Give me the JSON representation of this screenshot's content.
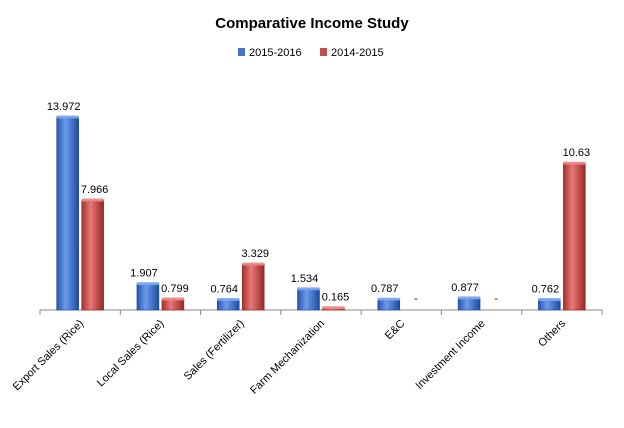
{
  "chart_data": {
    "type": "bar",
    "title": "Comparative Income Study",
    "xlabel": "",
    "ylabel": "",
    "ylim": [
      0,
      14
    ],
    "grid": false,
    "legend": "top",
    "categories": [
      "Export Sales (Rice)",
      "Local Sales (Rice)",
      "Sales (Fertilizer)",
      "Farm Mechanization",
      "E&C",
      "Investment Income",
      "Others"
    ],
    "series": [
      {
        "name": "2015-2016",
        "color": "#4472C4",
        "values": [
          13.972,
          1.907,
          0.764,
          1.534,
          0.787,
          0.877,
          0.762
        ],
        "labels": [
          "13.972",
          "1.907",
          "0.764",
          "1.534",
          "0.787",
          "0.877",
          "0.762"
        ]
      },
      {
        "name": "2014-2015",
        "color": "#C0504D",
        "values": [
          7.966,
          0.799,
          3.329,
          0.165,
          0,
          0,
          10.63
        ],
        "labels": [
          "7.966",
          "0.799",
          "3.329",
          "0.165",
          "-",
          "-",
          "10.63"
        ]
      }
    ]
  }
}
